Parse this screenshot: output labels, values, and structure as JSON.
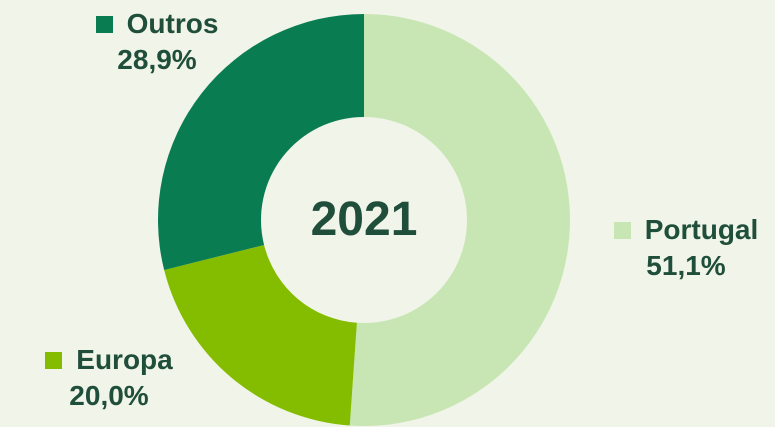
{
  "chart_data": {
    "type": "pie",
    "donut": true,
    "center_label": "2021",
    "slices": [
      {
        "label": "Portugal",
        "value": 51.1,
        "display": "51,1%",
        "color": "#c8e6b4"
      },
      {
        "label": "Europa",
        "value": 20.0,
        "display": "20,0%",
        "color": "#84bd00"
      },
      {
        "label": "Outros",
        "value": 28.9,
        "display": "28,9%",
        "color": "#0a7c52"
      }
    ]
  }
}
